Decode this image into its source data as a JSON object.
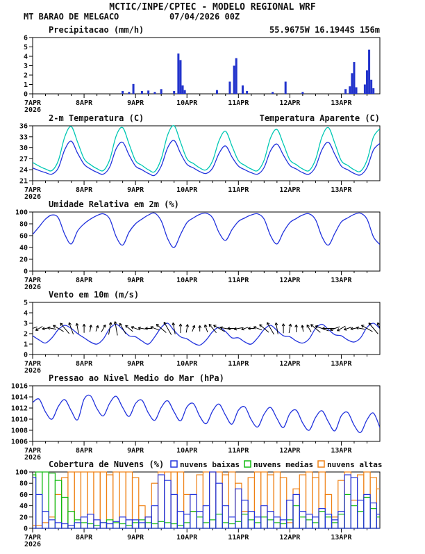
{
  "header": {
    "title": "MCTIC/INPE/CPTEC - MODELO REGIONAL WRF",
    "station": "MT BARAO DE MELGACO",
    "run": "07/04/2026 00Z"
  },
  "colors": {
    "header_blue": "#2020c8",
    "orange": "#e8820a",
    "line_blue": "#2233dd",
    "cyan": "#00c8b4",
    "green": "#11bb11",
    "black": "#000000"
  },
  "x_axis": {
    "step_hours": 3,
    "hours_total": 162,
    "tick_hours": [
      0,
      24,
      48,
      72,
      96,
      120,
      144
    ],
    "tick_labels": [
      "7APR",
      "8APR",
      "9APR",
      "10APR",
      "11APR",
      "12APR",
      "13APR"
    ],
    "year_label": "2026"
  },
  "chart_data": [
    {
      "id": "precipitation",
      "type": "bar",
      "title": "Precipitacao (mm/h)",
      "annotation": "55.9675W 16.1944S 156m",
      "ylim": [
        0,
        6
      ],
      "yticks": [
        0,
        1,
        2,
        3,
        4,
        5,
        6
      ],
      "bar_color": "#2233cc",
      "points": [
        {
          "h": 42,
          "v": 0.3
        },
        {
          "h": 45,
          "v": 0.2
        },
        {
          "h": 47,
          "v": 1.05
        },
        {
          "h": 51,
          "v": 0.3
        },
        {
          "h": 54,
          "v": 0.35
        },
        {
          "h": 57,
          "v": 0.2
        },
        {
          "h": 60,
          "v": 0.5
        },
        {
          "h": 66,
          "v": 0.3
        },
        {
          "h": 68,
          "v": 4.3
        },
        {
          "h": 69,
          "v": 3.6
        },
        {
          "h": 70,
          "v": 0.9
        },
        {
          "h": 71,
          "v": 0.4
        },
        {
          "h": 86,
          "v": 0.4
        },
        {
          "h": 92,
          "v": 1.3
        },
        {
          "h": 94,
          "v": 3.0
        },
        {
          "h": 95,
          "v": 3.8
        },
        {
          "h": 98,
          "v": 0.9
        },
        {
          "h": 100,
          "v": 0.3
        },
        {
          "h": 112,
          "v": 0.2
        },
        {
          "h": 118,
          "v": 1.3
        },
        {
          "h": 126,
          "v": 0.2
        },
        {
          "h": 146,
          "v": 0.5
        },
        {
          "h": 148,
          "v": 0.8
        },
        {
          "h": 149,
          "v": 2.2
        },
        {
          "h": 150,
          "v": 3.4
        },
        {
          "h": 151,
          "v": 0.7
        },
        {
          "h": 155,
          "v": 1.0
        },
        {
          "h": 156,
          "v": 2.5
        },
        {
          "h": 157,
          "v": 4.7
        },
        {
          "h": 158,
          "v": 1.5
        },
        {
          "h": 159,
          "v": 0.6
        }
      ]
    },
    {
      "id": "temperature",
      "type": "line",
      "title": "2-m Temperatura (C)",
      "ylim": [
        21,
        36
      ],
      "yticks": [
        21,
        24,
        27,
        30,
        33,
        36
      ],
      "series": [
        {
          "key": "temperature",
          "name": "2-m Temperatura (C)",
          "color": "#2233dd",
          "values": [
            24.5,
            23.8,
            23.2,
            22.8,
            24.5,
            29.5,
            31.8,
            28.5,
            25.5,
            24.2,
            23.3,
            22.8,
            24.8,
            29.8,
            31.5,
            28.0,
            25.0,
            24.0,
            23.0,
            22.5,
            25.0,
            30.0,
            32.0,
            28.5,
            25.5,
            24.5,
            23.5,
            23.0,
            24.5,
            28.5,
            30.5,
            27.5,
            25.0,
            24.0,
            23.2,
            22.8,
            24.6,
            29.2,
            31.0,
            28.0,
            25.2,
            24.2,
            23.2,
            22.8,
            24.8,
            29.5,
            31.5,
            28.2,
            25.0,
            24.0,
            23.0,
            22.6,
            24.6,
            29.4,
            31.2
          ]
        },
        {
          "key": "apparent-temperature",
          "name": "Temperatura Aparente (C)",
          "color": "#00c8b4",
          "values": [
            26.0,
            25.0,
            24.2,
            23.8,
            26.5,
            33.0,
            35.8,
            31.5,
            27.0,
            25.4,
            24.3,
            23.8,
            26.8,
            33.3,
            35.5,
            31.0,
            26.5,
            25.2,
            24.0,
            23.5,
            27.0,
            33.5,
            36.0,
            31.5,
            27.0,
            25.7,
            24.5,
            24.0,
            26.5,
            32.0,
            34.5,
            30.5,
            26.5,
            25.2,
            24.2,
            23.8,
            26.6,
            32.7,
            35.0,
            31.0,
            26.7,
            25.4,
            24.2,
            23.8,
            26.8,
            33.0,
            35.5,
            31.2,
            26.5,
            25.2,
            24.0,
            23.6,
            26.6,
            32.9,
            35.2
          ]
        }
      ]
    },
    {
      "id": "humidity",
      "type": "line",
      "title": "Umidade Relativa em 2m (%)",
      "ylim": [
        0,
        100
      ],
      "yticks": [
        0,
        20,
        40,
        60,
        80,
        100
      ],
      "series": [
        {
          "key": "relative-humidity",
          "name": "Umidade Relativa em 2m (%)",
          "color": "#2233dd",
          "values": [
            62,
            75,
            88,
            95,
            90,
            62,
            46,
            68,
            80,
            88,
            94,
            97,
            88,
            58,
            44,
            66,
            80,
            88,
            95,
            98,
            85,
            55,
            40,
            62,
            82,
            90,
            96,
            98,
            90,
            65,
            52,
            70,
            84,
            90,
            95,
            97,
            88,
            60,
            46,
            66,
            82,
            89,
            95,
            97,
            87,
            58,
            44,
            64,
            83,
            90,
            96,
            98,
            88,
            58,
            45
          ]
        }
      ]
    },
    {
      "id": "wind",
      "type": "line",
      "title": "Vento em 10m (m/s)",
      "ylim": [
        0,
        5
      ],
      "yticks": [
        0,
        1,
        2,
        3,
        4,
        5
      ],
      "vector_anchor": 2.5,
      "vector_dirs": [
        200,
        210,
        190,
        170,
        150,
        130,
        110,
        100,
        90,
        80,
        70,
        60,
        80,
        100,
        120,
        140,
        160,
        170,
        180,
        160,
        140,
        120,
        100,
        90,
        80,
        70,
        90,
        110,
        130,
        150,
        170,
        180,
        190,
        200,
        180,
        160,
        140,
        120,
        100,
        90,
        80,
        90,
        100,
        120,
        140,
        160,
        180,
        200,
        210,
        200,
        190,
        170,
        150,
        130,
        110
      ],
      "series": [
        {
          "key": "wind-speed",
          "name": "Vento em 10m (m/s)",
          "color": "#2233dd",
          "values": [
            1.8,
            1.4,
            1.1,
            1.6,
            2.4,
            2.8,
            2.5,
            2.0,
            1.6,
            1.2,
            1.0,
            1.5,
            2.5,
            2.9,
            2.4,
            1.8,
            1.7,
            1.3,
            1.0,
            1.7,
            2.6,
            3.0,
            2.3,
            1.7,
            1.5,
            1.1,
            0.9,
            1.4,
            2.2,
            2.6,
            2.2,
            1.6,
            1.6,
            1.2,
            1.0,
            1.6,
            2.4,
            2.8,
            2.3,
            1.8,
            1.7,
            1.3,
            1.1,
            1.5,
            2.5,
            2.9,
            2.4,
            1.9,
            1.8,
            1.4,
            1.2,
            1.6,
            2.6,
            3.0,
            2.5
          ]
        }
      ]
    },
    {
      "id": "pressure",
      "type": "line",
      "title": "Pressao ao Nivel Medio do Mar (hPa)",
      "ylim": [
        1006,
        1016
      ],
      "yticks": [
        1006,
        1008,
        1010,
        1012,
        1014,
        1016
      ],
      "series": [
        {
          "key": "mslp",
          "name": "Pressao ao Nivel Medio do Mar (hPa)",
          "color": "#2233dd",
          "values": [
            1013.0,
            1013.6,
            1011.3,
            1010.0,
            1012.3,
            1013.5,
            1011.5,
            1009.9,
            1013.6,
            1014.2,
            1011.9,
            1010.6,
            1012.9,
            1014.1,
            1012.1,
            1010.5,
            1012.8,
            1013.4,
            1011.1,
            1009.8,
            1012.1,
            1013.3,
            1011.3,
            1009.7,
            1012.2,
            1012.8,
            1010.5,
            1009.2,
            1011.5,
            1012.7,
            1010.7,
            1009.1,
            1011.6,
            1012.2,
            1009.9,
            1008.6,
            1010.9,
            1012.1,
            1010.1,
            1008.5,
            1011.0,
            1011.6,
            1009.3,
            1008.0,
            1010.3,
            1011.5,
            1009.5,
            1007.9,
            1010.6,
            1011.2,
            1008.9,
            1007.6,
            1009.9,
            1011.1,
            1008.5
          ]
        }
      ]
    },
    {
      "id": "clouds",
      "type": "outline-bar",
      "title": "Cobertura de Nuvens (%)",
      "ylim": [
        0,
        100
      ],
      "yticks": [
        0,
        20,
        40,
        60,
        80,
        100
      ],
      "series": [
        {
          "key": "low-clouds",
          "name": "nuvens baixas",
          "color": "#2233dd",
          "values": [
            90,
            60,
            30,
            15,
            10,
            8,
            5,
            10,
            20,
            25,
            15,
            10,
            8,
            12,
            20,
            15,
            15,
            10,
            20,
            40,
            95,
            85,
            60,
            30,
            25,
            60,
            30,
            40,
            100,
            80,
            40,
            20,
            70,
            50,
            30,
            20,
            40,
            30,
            20,
            15,
            50,
            60,
            30,
            25,
            20,
            35,
            25,
            15,
            30,
            95,
            90,
            50,
            60,
            45,
            25
          ]
        },
        {
          "key": "mid-clouds",
          "name": "nuvens medias",
          "color": "#11bb11",
          "values": [
            95,
            100,
            100,
            98,
            85,
            55,
            30,
            15,
            10,
            8,
            5,
            10,
            15,
            10,
            8,
            5,
            10,
            15,
            10,
            8,
            12,
            10,
            8,
            5,
            10,
            30,
            20,
            10,
            15,
            25,
            10,
            8,
            12,
            25,
            15,
            10,
            20,
            15,
            10,
            8,
            15,
            40,
            20,
            15,
            10,
            30,
            20,
            10,
            25,
            60,
            40,
            30,
            55,
            35,
            20
          ]
        },
        {
          "key": "high-clouds",
          "name": "nuvens altas",
          "color": "#ef8013",
          "values": [
            5,
            5,
            10,
            20,
            60,
            90,
            100,
            100,
            100,
            100,
            100,
            100,
            95,
            100,
            100,
            100,
            90,
            40,
            20,
            80,
            100,
            100,
            100,
            100,
            60,
            30,
            95,
            100,
            100,
            100,
            95,
            100,
            80,
            30,
            90,
            100,
            100,
            95,
            100,
            90,
            10,
            70,
            95,
            100,
            90,
            100,
            60,
            20,
            85,
            100,
            50,
            95,
            100,
            90,
            70
          ]
        }
      ]
    }
  ]
}
